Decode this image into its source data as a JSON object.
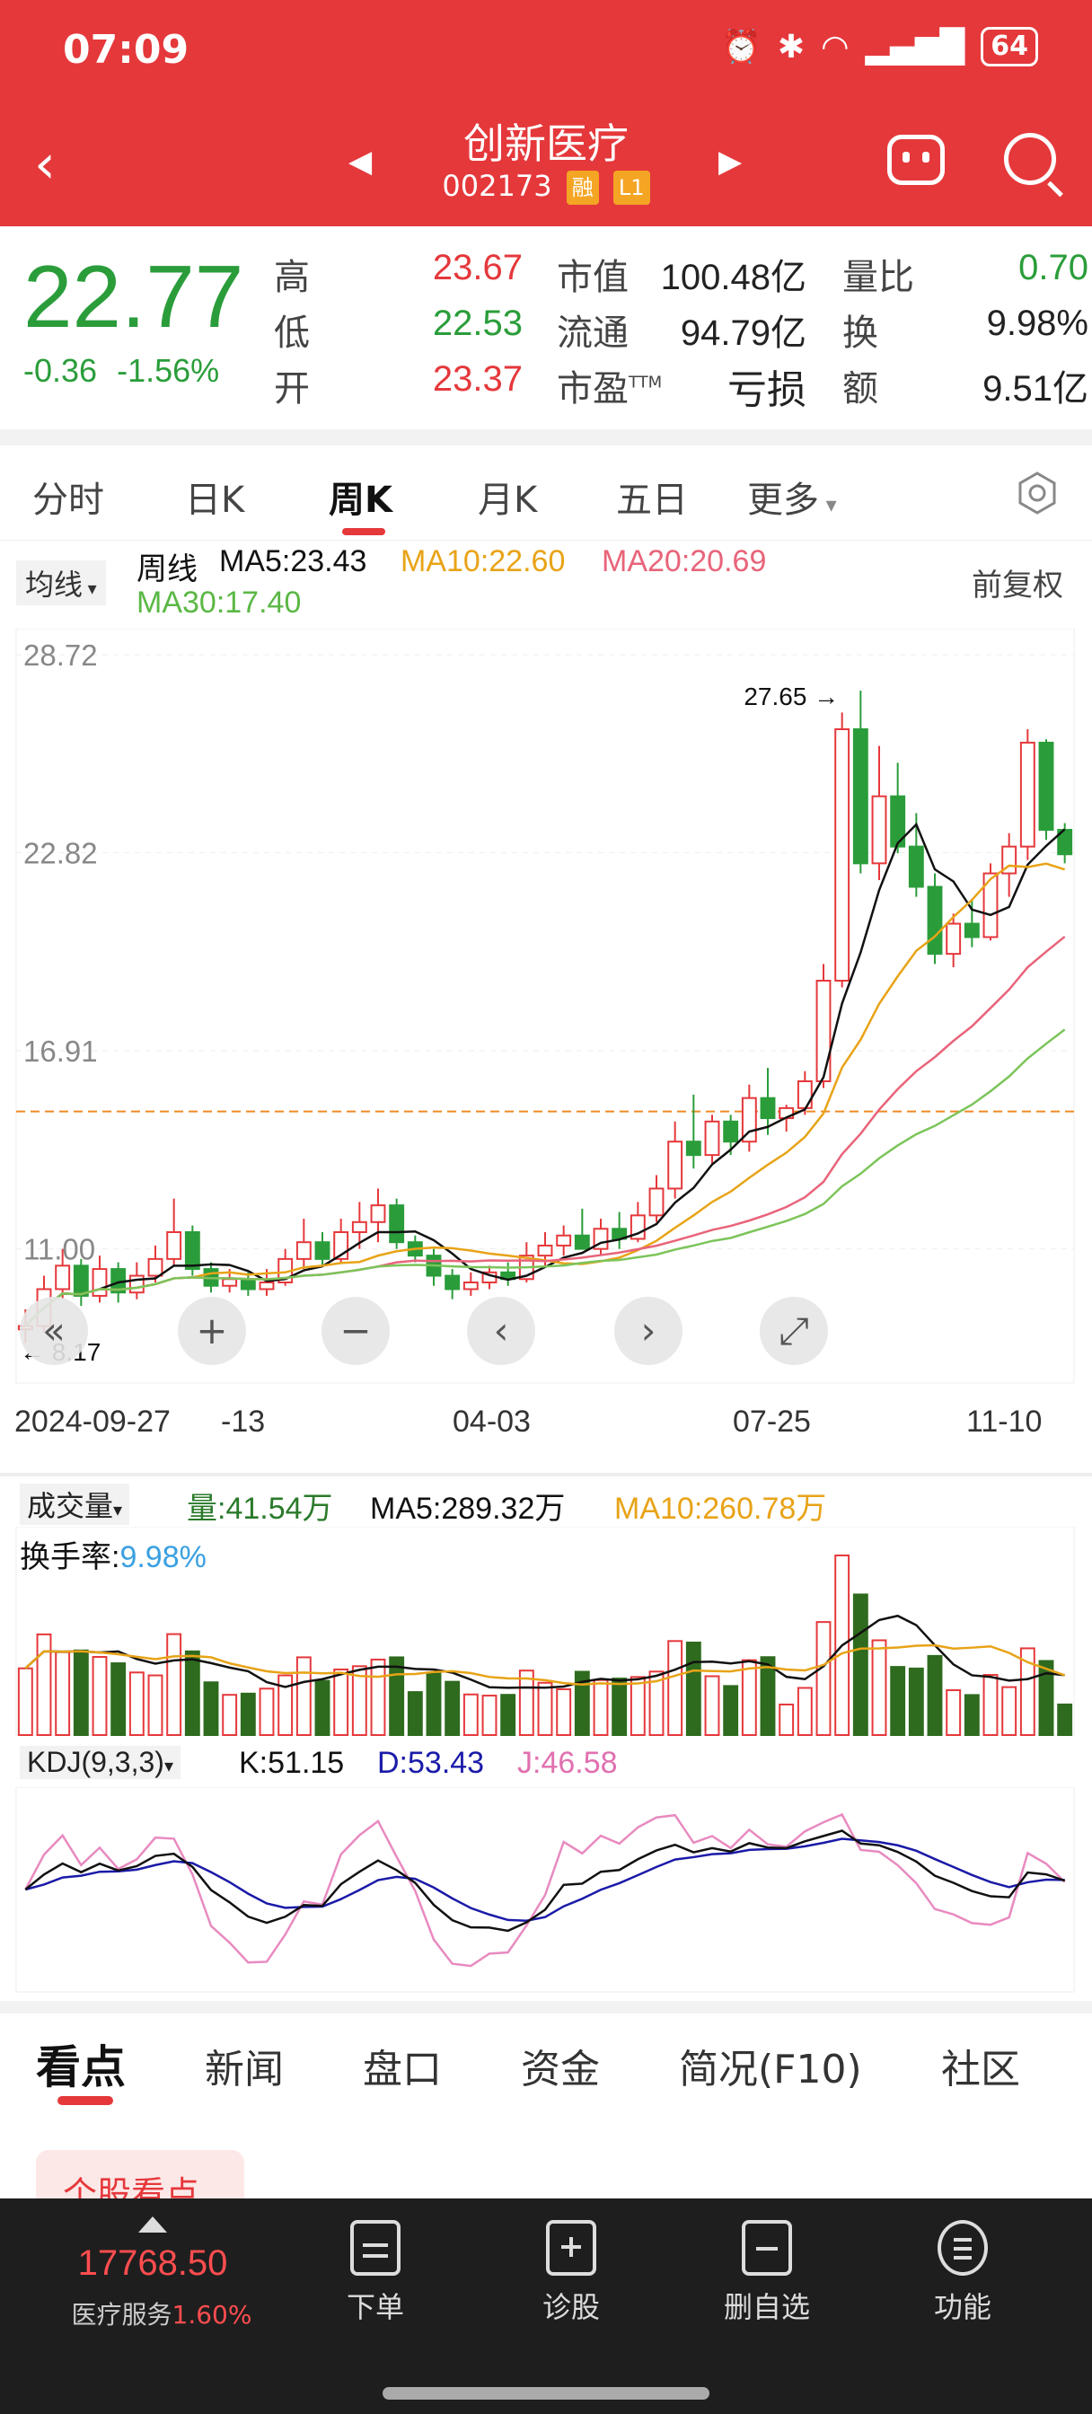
{
  "status_bar": {
    "time": "07:09",
    "battery": "64"
  },
  "header": {
    "title": "创新医疗",
    "code": "002173",
    "tag_margin": "融",
    "tag_level": "L1"
  },
  "quote": {
    "price": "22.77",
    "change": "-0.36",
    "change_pct": "-1.56%",
    "high_label": "高",
    "high": "23.67",
    "low_label": "低",
    "low": "22.53",
    "open_label": "开",
    "open": "23.37",
    "mcap_label": "市值",
    "mcap": "100.48亿",
    "float_label": "流通",
    "float": "94.79亿",
    "pe_label": "市盈",
    "pe_sup": "TTM",
    "pe": "亏损",
    "vr_label": "量比",
    "vr": "0.70",
    "turnover_label": "换",
    "turnover": "9.98%",
    "amount_label": "额",
    "amount": "9.51亿"
  },
  "tabs": [
    "分时",
    "日K",
    "周K",
    "月K",
    "五日",
    "更多"
  ],
  "active_tab": "周K",
  "ma_row": {
    "select": "均线",
    "period": "周线",
    "ma5": "MA5:23.43",
    "ma10": "MA10:22.60",
    "ma20": "MA20:20.69",
    "ma30": "MA30:17.40",
    "adjust": "前复权"
  },
  "price_axis": [
    "28.72",
    "22.82",
    "16.91",
    "11.00"
  ],
  "annotations": {
    "max": "27.65",
    "min": "8.17"
  },
  "dates": [
    "2024-09-27",
    "-13",
    "04-03",
    "07-25",
    "11-10"
  ],
  "volume": {
    "select": "成交量",
    "vol": "量:41.54万",
    "ma5": "MA5:289.32万",
    "ma10": "MA10:260.78万",
    "turnover_label": "换手率:",
    "turnover": "9.98%"
  },
  "kdj": {
    "select": "KDJ(9,3,3)",
    "k": "K:51.15",
    "d": "D:53.43",
    "j": "J:46.58"
  },
  "bottom_tabs": [
    "看点",
    "新闻",
    "盘口",
    "资金",
    "简况(F10)",
    "社区"
  ],
  "highlight_card": "个股看点",
  "bottom_nav": {
    "index_value": "17768.50",
    "index_name": "医疗服务",
    "index_pct": "1.60%",
    "items": [
      "下单",
      "诊股",
      "删自选",
      "功能"
    ]
  },
  "colors": {
    "up": "#e5383b",
    "down": "#2a9d3a",
    "ma5": "#111111",
    "ma10": "#e8a317",
    "ma20": "#e8647a",
    "ma30": "#7cc45a",
    "header": "#e5383b"
  },
  "chart_data": {
    "type": "candlestick",
    "title": "创新医疗 周K",
    "y_ticks": [
      28.72,
      22.82,
      16.91,
      11.0
    ],
    "ylim": [
      7.0,
      29.5
    ],
    "reference_line": 15.1,
    "x_ticks": [
      "2024-09-27",
      "-13",
      "04-03",
      "07-25",
      "11-10"
    ],
    "candles": [
      [
        8.6,
        9.2,
        8.2,
        8.7
      ],
      [
        8.7,
        10.2,
        8.5,
        9.8
      ],
      [
        9.8,
        11.0,
        9.5,
        10.5
      ],
      [
        10.5,
        10.7,
        9.3,
        9.6
      ],
      [
        9.6,
        10.8,
        9.4,
        10.4
      ],
      [
        10.4,
        10.6,
        9.4,
        9.7
      ],
      [
        9.7,
        10.6,
        9.5,
        10.2
      ],
      [
        10.2,
        11.1,
        10.0,
        10.7
      ],
      [
        10.7,
        12.5,
        10.5,
        11.5
      ],
      [
        11.5,
        11.7,
        10.2,
        10.4
      ],
      [
        10.4,
        10.6,
        9.7,
        9.9
      ],
      [
        9.9,
        10.4,
        9.7,
        10.1
      ],
      [
        10.1,
        10.3,
        9.6,
        9.8
      ],
      [
        9.8,
        10.4,
        9.6,
        10.0
      ],
      [
        10.0,
        11.0,
        9.9,
        10.7
      ],
      [
        10.7,
        11.9,
        10.4,
        11.2
      ],
      [
        11.2,
        11.5,
        10.5,
        10.7
      ],
      [
        10.7,
        11.9,
        10.6,
        11.5
      ],
      [
        11.5,
        12.4,
        11.0,
        11.8
      ],
      [
        11.8,
        12.8,
        11.2,
        12.3
      ],
      [
        12.3,
        12.5,
        11.0,
        11.2
      ],
      [
        11.2,
        11.4,
        10.6,
        10.8
      ],
      [
        10.8,
        11.0,
        9.9,
        10.2
      ],
      [
        10.2,
        10.4,
        9.5,
        9.8
      ],
      [
        9.8,
        10.3,
        9.6,
        10.0
      ],
      [
        10.0,
        10.5,
        9.8,
        10.3
      ],
      [
        10.3,
        10.6,
        9.9,
        10.1
      ],
      [
        10.1,
        11.2,
        10.0,
        10.8
      ],
      [
        10.8,
        11.5,
        10.5,
        11.1
      ],
      [
        11.1,
        11.7,
        10.8,
        11.4
      ],
      [
        11.4,
        12.2,
        11.0,
        11.0
      ],
      [
        11.0,
        11.9,
        10.8,
        11.6
      ],
      [
        11.6,
        12.1,
        11.0,
        11.3
      ],
      [
        11.3,
        12.4,
        11.2,
        12.0
      ],
      [
        12.0,
        13.2,
        11.8,
        12.8
      ],
      [
        12.8,
        14.8,
        12.5,
        14.2
      ],
      [
        14.2,
        15.6,
        13.4,
        13.8
      ],
      [
        13.8,
        15.0,
        13.5,
        14.8
      ],
      [
        14.8,
        15.0,
        13.8,
        14.2
      ],
      [
        14.2,
        15.9,
        13.9,
        15.5
      ],
      [
        15.5,
        16.4,
        14.4,
        14.9
      ],
      [
        14.9,
        15.3,
        14.5,
        15.2
      ],
      [
        15.2,
        16.3,
        15.0,
        16.0
      ],
      [
        16.0,
        19.5,
        15.8,
        19.0
      ],
      [
        19.0,
        27.0,
        18.8,
        26.5
      ],
      [
        26.5,
        27.65,
        22.2,
        22.5
      ],
      [
        22.5,
        26.0,
        22.0,
        24.5
      ],
      [
        24.5,
        25.5,
        22.8,
        23.0
      ],
      [
        23.0,
        24.0,
        21.5,
        21.8
      ],
      [
        21.8,
        22.2,
        19.5,
        19.8
      ],
      [
        19.8,
        21.0,
        19.4,
        20.7
      ],
      [
        20.7,
        21.4,
        20.0,
        20.3
      ],
      [
        20.3,
        22.5,
        20.2,
        22.2
      ],
      [
        22.2,
        23.4,
        21.5,
        23.0
      ],
      [
        23.0,
        26.5,
        22.6,
        26.1
      ],
      [
        26.1,
        26.2,
        23.2,
        23.5
      ],
      [
        23.5,
        23.7,
        22.5,
        22.77
      ]
    ]
  }
}
